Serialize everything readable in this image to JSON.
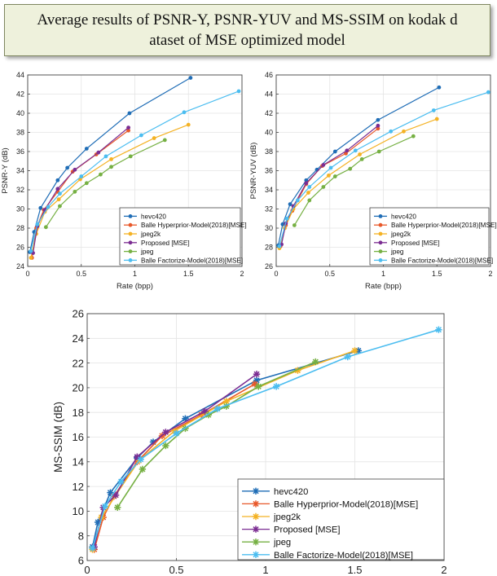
{
  "title": "Average results of PSNR-Y, PSNR-YUV and MS-SSIM on kodak dataset of MSE optimized model",
  "title_lines": [
    "Average results of PSNR-Y, PSNR-YUV and MS-SSIM on kodak d",
    "ataset of MSE optimized model"
  ],
  "colors": {
    "hevc420": "#1f6db6",
    "balle_hyper": "#e8582a",
    "jpeg2k": "#f4b224",
    "proposed": "#7b2d92",
    "jpeg": "#76b043",
    "balle_fact": "#4bbdf0"
  },
  "chart_data": [
    {
      "type": "line",
      "xlabel": "Rate (bpp)",
      "ylabel": "PSNR-Y (dB)",
      "xlim": [
        0,
        2
      ],
      "ylim": [
        24,
        44
      ],
      "xticks": [
        "0",
        "0.5",
        "1",
        "1.5",
        "2"
      ],
      "yticks": [
        "24",
        "26",
        "28",
        "30",
        "32",
        "34",
        "36",
        "38",
        "40",
        "42",
        "44"
      ],
      "legend_position": "bottom-right",
      "marker": "dot",
      "series": [
        {
          "key": "hevc420",
          "name": "hevc420",
          "x": [
            0.02,
            0.06,
            0.12,
            0.28,
            0.37,
            0.55,
            0.95,
            1.52
          ],
          "y": [
            25.5,
            27.6,
            30.1,
            33.0,
            34.3,
            36.3,
            40.0,
            43.7
          ]
        },
        {
          "key": "balle_hyper",
          "name": "Balle Hyperprior-Model(2018)[MSE]",
          "x": [
            0.04,
            0.08,
            0.15,
            0.28,
            0.42,
            0.64,
            0.94
          ],
          "y": [
            24.9,
            28.0,
            29.9,
            31.8,
            33.9,
            35.7,
            38.2
          ]
        },
        {
          "key": "jpeg2k",
          "name": "jpeg2k",
          "x": [
            0.03,
            0.08,
            0.16,
            0.29,
            0.49,
            0.78,
            1.18,
            1.5
          ],
          "y": [
            24.9,
            27.4,
            29.7,
            31.0,
            33.1,
            35.2,
            37.4,
            38.8
          ]
        },
        {
          "key": "proposed",
          "name": "Proposed [MSE]",
          "x": [
            0.05,
            0.09,
            0.16,
            0.28,
            0.44,
            0.66,
            0.94
          ],
          "y": [
            25.4,
            28.2,
            29.9,
            32.1,
            34.1,
            35.9,
            38.5
          ]
        },
        {
          "key": "jpeg",
          "name": "jpeg",
          "x": [
            0.17,
            0.3,
            0.44,
            0.55,
            0.68,
            0.78,
            0.96,
            1.28
          ],
          "y": [
            28.1,
            30.3,
            31.8,
            32.7,
            33.6,
            34.4,
            35.5,
            37.2
          ]
        },
        {
          "key": "balle_fact",
          "name": "Balle Factorize-Model(2018)[MSE]",
          "x": [
            0.03,
            0.09,
            0.19,
            0.3,
            0.5,
            0.73,
            1.06,
            1.46,
            1.97
          ],
          "y": [
            25.6,
            28.4,
            30.2,
            31.6,
            33.4,
            35.5,
            37.7,
            40.1,
            42.3
          ]
        }
      ]
    },
    {
      "type": "line",
      "xlabel": "Rate (bpp)",
      "ylabel": "PSNR-YUV (dB)",
      "xlim": [
        0,
        2
      ],
      "ylim": [
        26,
        46
      ],
      "xticks": [
        "0",
        "0.5",
        "1",
        "1.5",
        "2"
      ],
      "yticks": [
        "26",
        "28",
        "30",
        "32",
        "34",
        "36",
        "38",
        "40",
        "42",
        "44",
        "46"
      ],
      "legend_position": "bottom-right",
      "marker": "dot",
      "series": [
        {
          "key": "hevc420",
          "name": "hevc420",
          "x": [
            0.02,
            0.06,
            0.13,
            0.28,
            0.38,
            0.55,
            0.95,
            1.52
          ],
          "y": [
            28.2,
            30.4,
            32.5,
            35.0,
            36.1,
            38.0,
            41.3,
            44.7
          ]
        },
        {
          "key": "balle_hyper",
          "name": "Balle Hyperprior-Model(2018)[MSE]",
          "x": [
            0.04,
            0.09,
            0.15,
            0.28,
            0.43,
            0.65,
            0.95
          ],
          "y": [
            28.1,
            30.3,
            31.8,
            34.6,
            36.5,
            37.8,
            40.4
          ]
        },
        {
          "key": "jpeg2k",
          "name": "jpeg2k",
          "x": [
            0.03,
            0.08,
            0.16,
            0.3,
            0.49,
            0.78,
            1.19,
            1.5
          ],
          "y": [
            27.9,
            30.0,
            32.0,
            33.7,
            35.5,
            37.7,
            40.1,
            41.4
          ]
        },
        {
          "key": "proposed",
          "name": "Proposed [MSE]",
          "x": [
            0.05,
            0.09,
            0.16,
            0.28,
            0.44,
            0.66,
            0.95
          ],
          "y": [
            28.3,
            30.5,
            32.3,
            34.7,
            36.6,
            38.1,
            40.7
          ]
        },
        {
          "key": "jpeg",
          "name": "jpeg",
          "x": [
            0.17,
            0.31,
            0.44,
            0.55,
            0.69,
            0.8,
            0.96,
            1.28
          ],
          "y": [
            30.3,
            32.9,
            34.3,
            35.4,
            36.2,
            37.2,
            38.0,
            39.6
          ]
        },
        {
          "key": "balle_fact",
          "name": "Balle Factorize-Model(2018)[MSE]",
          "x": [
            0.03,
            0.1,
            0.2,
            0.31,
            0.51,
            0.74,
            1.07,
            1.47,
            1.98
          ],
          "y": [
            28.1,
            31.0,
            32.9,
            34.3,
            36.3,
            38.1,
            40.1,
            42.3,
            44.2
          ]
        }
      ]
    },
    {
      "type": "line",
      "xlabel": "",
      "ylabel": "MS-SSIM (dB)",
      "xlim": [
        0,
        2
      ],
      "ylim": [
        6,
        26
      ],
      "xticks": [
        "0",
        "0.5",
        "1",
        "1.5",
        "2"
      ],
      "yticks": [
        "6",
        "8",
        "10",
        "12",
        "14",
        "16",
        "18",
        "20",
        "22",
        "24",
        "26"
      ],
      "legend_position": "bottom-right",
      "marker": "star",
      "series": [
        {
          "key": "hevc420",
          "name": "hevc420",
          "x": [
            0.03,
            0.06,
            0.13,
            0.28,
            0.37,
            0.55,
            0.95,
            1.52
          ],
          "y": [
            7.1,
            9.1,
            11.5,
            14.3,
            15.6,
            17.5,
            20.6,
            23.0
          ]
        },
        {
          "key": "balle_hyper",
          "name": "Balle Hyperprior-Model(2018)[MSE]",
          "x": [
            0.04,
            0.09,
            0.15,
            0.28,
            0.42,
            0.64,
            0.94
          ],
          "y": [
            6.9,
            9.5,
            11.2,
            14.0,
            16.1,
            17.8,
            20.3
          ]
        },
        {
          "key": "jpeg2k",
          "name": "jpeg2k",
          "x": [
            0.03,
            0.08,
            0.16,
            0.29,
            0.49,
            0.78,
            1.18,
            1.5
          ],
          "y": [
            6.9,
            9.5,
            11.3,
            14.1,
            16.5,
            18.9,
            21.4,
            23.0
          ]
        },
        {
          "key": "proposed",
          "name": "Proposed [MSE]",
          "x": [
            0.04,
            0.09,
            0.16,
            0.28,
            0.44,
            0.66,
            0.95
          ],
          "y": [
            7.1,
            10.3,
            11.3,
            14.4,
            16.4,
            18.1,
            21.1
          ]
        },
        {
          "key": "jpeg",
          "name": "jpeg",
          "x": [
            0.17,
            0.31,
            0.44,
            0.55,
            0.68,
            0.78,
            0.96,
            1.28
          ],
          "y": [
            10.3,
            13.4,
            15.3,
            16.7,
            17.8,
            18.5,
            20.1,
            22.1
          ]
        },
        {
          "key": "balle_fact",
          "name": "Balle Factorize-Model(2018)[MSE]",
          "x": [
            0.03,
            0.1,
            0.19,
            0.3,
            0.5,
            0.73,
            1.06,
            1.46,
            1.97
          ],
          "y": [
            7.0,
            10.4,
            12.4,
            14.2,
            16.3,
            18.3,
            20.1,
            22.5,
            24.7
          ]
        }
      ]
    }
  ]
}
